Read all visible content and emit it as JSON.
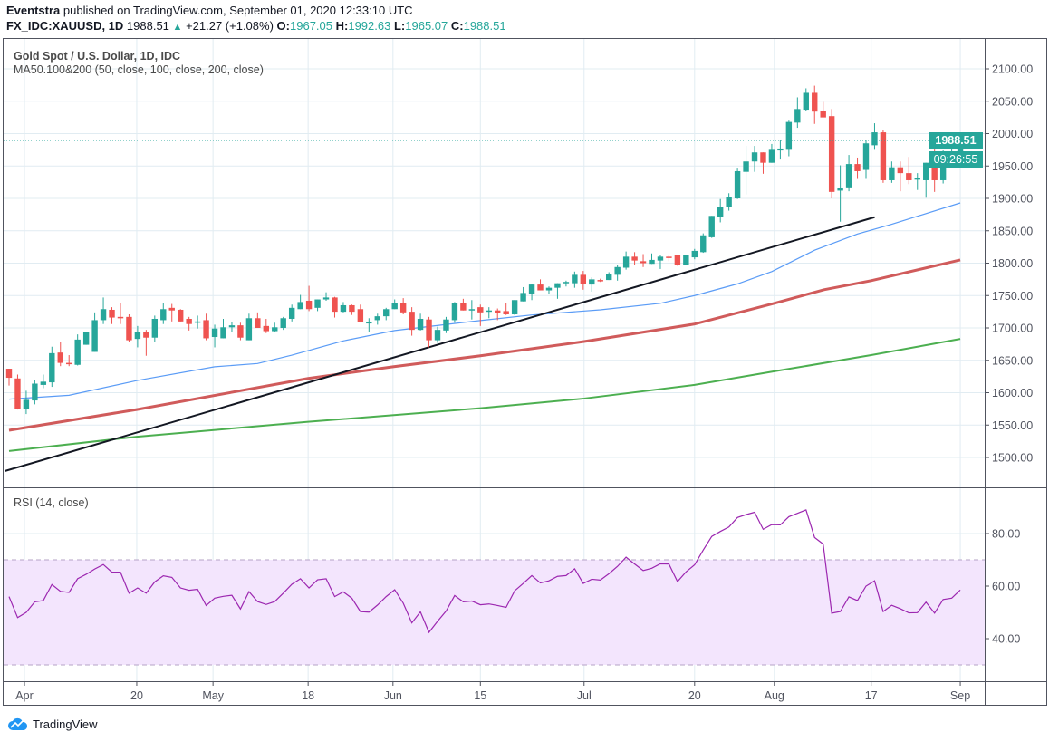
{
  "header": {
    "author": "Eventstra",
    "published": "published on TradingView.com, September 01, 2020 12:33:10 UTC",
    "symbol": "FX_IDC:XAUUSD, 1D",
    "last": "1988.51",
    "change": "+21.27 (+1.08%)",
    "o_label": "O:",
    "o": "1967.05",
    "h_label": "H:",
    "h": "1992.63",
    "l_label": "L:",
    "l": "1965.07",
    "c_label": "C:",
    "c": "1988.51"
  },
  "legend": {
    "title": "Gold Spot / U.S. Dollar, 1D, IDC",
    "ma": "MA50.100&200 (50, close, 100, close, 200, close)",
    "rsi": "RSI (14, close)"
  },
  "price_label": "1988.51",
  "countdown": "09:26:55",
  "logo": "TradingView",
  "colors": {
    "up": "#26a69a",
    "down": "#ef5350",
    "ma50": "#5b9cf6",
    "ma100": "#d05b5b",
    "ma200": "#4caf50",
    "rsi": "#9c27b0",
    "rsi_band": "#f3e5fd",
    "trendline": "#131722"
  },
  "chart_data": [
    {
      "type": "candlestick",
      "title": "Gold Spot / U.S. Dollar, 1D, IDC",
      "ylim": [
        1450,
        2130
      ],
      "yticks": [
        "1500.00",
        "1550.00",
        "1600.00",
        "1650.00",
        "1700.00",
        "1750.00",
        "1800.00",
        "1850.00",
        "1900.00",
        "1950.00",
        "2000.00",
        "2050.00",
        "2100.00"
      ],
      "xticks": [
        {
          "label": "Apr",
          "bar": 2.8
        },
        {
          "label": "20",
          "bar": 15.9
        },
        {
          "label": "May",
          "bar": 24.8
        },
        {
          "label": "18",
          "bar": 35.9
        },
        {
          "label": "Jun",
          "bar": 45.8
        },
        {
          "label": "15",
          "bar": 56
        },
        {
          "label": "Jul",
          "bar": 68.1
        },
        {
          "label": "20",
          "bar": 81
        },
        {
          "label": "Aug",
          "bar": 90.3
        },
        {
          "label": "17",
          "bar": 101.6
        },
        {
          "label": "Sep",
          "bar": 112
        }
      ],
      "ohlc": [
        [
          1637,
          1637,
          1611,
          1623
        ],
        [
          1622,
          1628,
          1574,
          1575
        ],
        [
          1575,
          1603,
          1567,
          1589
        ],
        [
          1588,
          1620,
          1582,
          1614
        ],
        [
          1612,
          1628,
          1607,
          1617
        ],
        [
          1616,
          1671,
          1609,
          1661
        ],
        [
          1662,
          1679,
          1641,
          1646
        ],
        [
          1646,
          1658,
          1641,
          1644
        ],
        [
          1643,
          1690,
          1642,
          1682
        ],
        [
          1674,
          1694,
          1674,
          1694
        ],
        [
          1663,
          1724,
          1663,
          1712
        ],
        [
          1712,
          1747,
          1706,
          1729
        ],
        [
          1728,
          1732,
          1706,
          1716
        ],
        [
          1717,
          1739,
          1706,
          1716
        ],
        [
          1717,
          1721,
          1678,
          1681
        ],
        [
          1683,
          1703,
          1670,
          1694
        ],
        [
          1694,
          1697,
          1657,
          1685
        ],
        [
          1685,
          1719,
          1678,
          1714
        ],
        [
          1712,
          1739,
          1706,
          1729
        ],
        [
          1731,
          1737,
          1710,
          1727
        ],
        [
          1728,
          1729,
          1710,
          1710
        ],
        [
          1714,
          1717,
          1696,
          1706
        ],
        [
          1709,
          1719,
          1699,
          1710
        ],
        [
          1712,
          1722,
          1681,
          1684
        ],
        [
          1686,
          1705,
          1670,
          1699
        ],
        [
          1684,
          1714,
          1684,
          1701
        ],
        [
          1701,
          1709,
          1694,
          1704
        ],
        [
          1704,
          1708,
          1681,
          1685
        ],
        [
          1681,
          1722,
          1681,
          1715
        ],
        [
          1715,
          1724,
          1700,
          1700
        ],
        [
          1703,
          1714,
          1692,
          1695
        ],
        [
          1695,
          1708,
          1694,
          1701
        ],
        [
          1700,
          1717,
          1697,
          1715
        ],
        [
          1714,
          1736,
          1710,
          1731
        ],
        [
          1729,
          1751,
          1729,
          1740
        ],
        [
          1742,
          1765,
          1726,
          1729
        ],
        [
          1731,
          1744,
          1726,
          1744
        ],
        [
          1744,
          1755,
          1742,
          1747
        ],
        [
          1747,
          1748,
          1716,
          1725
        ],
        [
          1725,
          1740,
          1724,
          1735
        ],
        [
          1735,
          1736,
          1720,
          1725
        ],
        [
          1729,
          1736,
          1709,
          1709
        ],
        [
          1709,
          1715,
          1694,
          1709
        ],
        [
          1712,
          1722,
          1705,
          1718
        ],
        [
          1718,
          1731,
          1712,
          1729
        ],
        [
          1729,
          1744,
          1729,
          1739
        ],
        [
          1739,
          1746,
          1721,
          1724
        ],
        [
          1725,
          1732,
          1688,
          1697
        ],
        [
          1697,
          1722,
          1696,
          1714
        ],
        [
          1713,
          1717,
          1670,
          1681
        ],
        [
          1681,
          1702,
          1677,
          1697
        ],
        [
          1696,
          1717,
          1692,
          1713
        ],
        [
          1712,
          1740,
          1708,
          1738
        ],
        [
          1738,
          1745,
          1727,
          1727
        ],
        [
          1728,
          1743,
          1713,
          1729
        ],
        [
          1732,
          1736,
          1703,
          1724
        ],
        [
          1725,
          1732,
          1715,
          1727
        ],
        [
          1727,
          1730,
          1712,
          1723
        ],
        [
          1726,
          1738,
          1720,
          1721
        ],
        [
          1721,
          1743,
          1720,
          1743
        ],
        [
          1741,
          1763,
          1741,
          1754
        ],
        [
          1753,
          1768,
          1743,
          1767
        ],
        [
          1767,
          1775,
          1758,
          1758
        ],
        [
          1758,
          1764,
          1752,
          1762
        ],
        [
          1762,
          1769,
          1745,
          1769
        ],
        [
          1770,
          1773,
          1764,
          1771
        ],
        [
          1769,
          1787,
          1762,
          1782
        ],
        [
          1782,
          1788,
          1759,
          1768
        ],
        [
          1767,
          1778,
          1756,
          1775
        ],
        [
          1774,
          1776,
          1771,
          1772
        ],
        [
          1774,
          1786,
          1774,
          1783
        ],
        [
          1782,
          1797,
          1773,
          1794
        ],
        [
          1793,
          1818,
          1790,
          1810
        ],
        [
          1810,
          1817,
          1797,
          1804
        ],
        [
          1803,
          1814,
          1794,
          1800
        ],
        [
          1799,
          1815,
          1799,
          1805
        ],
        [
          1804,
          1813,
          1791,
          1810
        ],
        [
          1810,
          1813,
          1803,
          1808
        ],
        [
          1812,
          1813,
          1796,
          1797
        ],
        [
          1797,
          1811,
          1797,
          1812
        ],
        [
          1809,
          1822,
          1806,
          1819
        ],
        [
          1817,
          1846,
          1816,
          1843
        ],
        [
          1840,
          1873,
          1839,
          1873
        ],
        [
          1872,
          1899,
          1863,
          1887
        ],
        [
          1887,
          1908,
          1881,
          1902
        ],
        [
          1900,
          1946,
          1899,
          1942
        ],
        [
          1941,
          1981,
          1906,
          1957
        ],
        [
          1957,
          1981,
          1941,
          1971
        ],
        [
          1971,
          1971,
          1938,
          1955
        ],
        [
          1955,
          1984,
          1955,
          1975
        ],
        [
          1974,
          1990,
          1960,
          1977
        ],
        [
          1975,
          2020,
          1965,
          2018
        ],
        [
          2017,
          2056,
          2009,
          2038
        ],
        [
          2037,
          2070,
          2035,
          2063
        ],
        [
          2063,
          2074,
          2015,
          2034
        ],
        [
          2035,
          2049,
          2026,
          2025
        ],
        [
          2027,
          2038,
          1900,
          1910
        ],
        [
          1912,
          1951,
          1864,
          1916
        ],
        [
          1917,
          1967,
          1911,
          1953
        ],
        [
          1953,
          1963,
          1930,
          1942
        ],
        [
          1944,
          1990,
          1930,
          1985
        ],
        [
          1982,
          2016,
          1975,
          2002
        ],
        [
          2002,
          2006,
          1924,
          1928
        ],
        [
          1928,
          1957,
          1924,
          1948
        ],
        [
          1948,
          1957,
          1911,
          1939
        ],
        [
          1939,
          1964,
          1922,
          1928
        ],
        [
          1930,
          1939,
          1913,
          1931
        ],
        [
          1928,
          1955,
          1901,
          1955
        ],
        [
          1955,
          1977,
          1910,
          1928
        ],
        [
          1928,
          1974,
          1923,
          1964
        ],
        [
          1964,
          1977,
          1953,
          1967
        ],
        [
          1967.05,
          1992.63,
          1965.07,
          1988.51
        ]
      ],
      "ma50": [
        [
          1,
          1590
        ],
        [
          8,
          1596
        ],
        [
          16,
          1619
        ],
        [
          25,
          1640
        ],
        [
          30,
          1645
        ],
        [
          34,
          1658
        ],
        [
          40,
          1680
        ],
        [
          46,
          1696
        ],
        [
          55,
          1710
        ],
        [
          62,
          1720
        ],
        [
          70,
          1728
        ],
        [
          77,
          1738
        ],
        [
          81,
          1750
        ],
        [
          86,
          1768
        ],
        [
          90,
          1787
        ],
        [
          95,
          1820
        ],
        [
          100,
          1845
        ],
        [
          104,
          1860
        ],
        [
          112,
          1893
        ]
      ],
      "ma100": [
        [
          1,
          1542
        ],
        [
          15.9,
          1574
        ],
        [
          35.9,
          1622
        ],
        [
          45.8,
          1640
        ],
        [
          56,
          1657
        ],
        [
          68.1,
          1679
        ],
        [
          81,
          1706
        ],
        [
          90.3,
          1738
        ],
        [
          96.1,
          1759
        ],
        [
          101.6,
          1773
        ],
        [
          112,
          1805
        ]
      ],
      "ma200": [
        [
          1,
          1510
        ],
        [
          15.9,
          1532
        ],
        [
          35.9,
          1555
        ],
        [
          56,
          1576
        ],
        [
          68.1,
          1591
        ],
        [
          81,
          1612
        ],
        [
          90.3,
          1633
        ],
        [
          101.6,
          1658
        ],
        [
          112,
          1683
        ]
      ],
      "trendline": [
        [
          0.5,
          1479
        ],
        [
          102,
          1871
        ]
      ],
      "last_price": 1988.51
    },
    {
      "type": "line",
      "title": "RSI (14, close)",
      "ylim": [
        22,
        96
      ],
      "yticks": [
        "40.00",
        "60.00",
        "80.00"
      ],
      "band": [
        30,
        70
      ],
      "values": [
        56,
        48,
        50,
        54,
        54.5,
        60.6,
        58,
        57.6,
        62.8,
        64.5,
        66.5,
        68.2,
        65.3,
        65.3,
        57.3,
        59.3,
        57.3,
        61.6,
        63.9,
        63.3,
        59.3,
        58.4,
        58.8,
        52.6,
        55.4,
        56.1,
        56.5,
        51.3,
        57.9,
        54.1,
        53,
        54.1,
        57.3,
        60.7,
        62.8,
        59.3,
        62.4,
        62.8,
        56,
        57.8,
        55.4,
        50.3,
        50.1,
        52.8,
        56,
        58.6,
        53.5,
        46,
        50.2,
        42.4,
        46.6,
        50.5,
        56.4,
        54,
        54.3,
        52.9,
        53.2,
        52.6,
        51.9,
        58.2,
        61,
        64,
        61.2,
        62,
        63.7,
        64,
        66.6,
        61,
        62.6,
        62.3,
        64.7,
        67.5,
        71,
        68.4,
        65.9,
        66.8,
        68.5,
        68.4,
        61.7,
        65.4,
        68.1,
        73.7,
        78.9,
        80.8,
        82.5,
        86.1,
        87.2,
        88.1,
        81.6,
        83.4,
        83.3,
        86.4,
        87.7,
        89,
        78.5,
        76,
        49.7,
        50.3,
        55.9,
        54.5,
        60,
        62,
        50.3,
        52.7,
        51.4,
        49.8,
        49.9,
        53.9,
        49.7,
        54.9,
        55.4,
        58.5
      ]
    }
  ]
}
